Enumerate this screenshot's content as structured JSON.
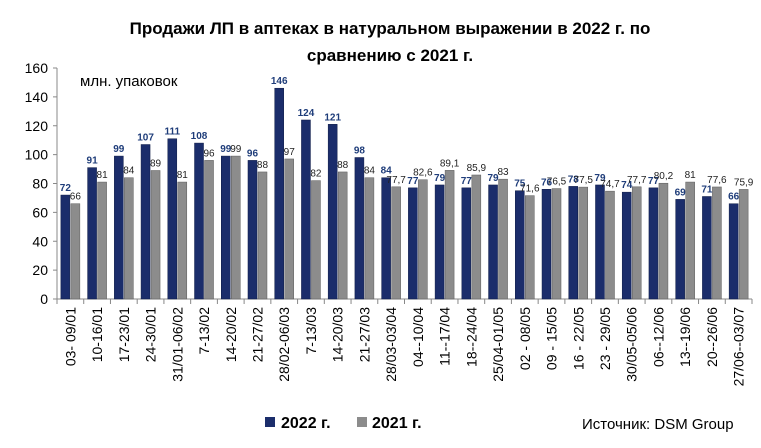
{
  "chart_data": {
    "type": "bar",
    "title_line1": "Продажи ЛП в аптеках в натуральном выражении в 2022 г. по",
    "title_line2": "сравнению с 2021 г.",
    "ylabel": "млн.  упаковок",
    "ylim": [
      0,
      160
    ],
    "yticks": [
      0,
      20,
      40,
      60,
      80,
      100,
      120,
      140,
      160
    ],
    "categories": [
      "03- 09/01",
      "10-16/01",
      "17-23/01",
      "24-30/01",
      "31/01-06/02",
      "7-13/02",
      "14-20/02",
      "21-27/02",
      "28/02-06/03",
      "7-13/03",
      "14-20/03",
      "21-27/03",
      "28/03-03/04",
      "04--10/04",
      "11--17/04",
      "18--24/04",
      "25/04-01/05",
      "02 - 08/05",
      "09 - 15/05",
      "16 - 22/05",
      "23 - 29/05",
      "30/05-05/06",
      "06--12/06",
      "13--19/06",
      "20--26/06",
      "27/06--03/07"
    ],
    "series": [
      {
        "name": "2022 г.",
        "color": "#1b2d6b",
        "values": [
          72,
          91,
          99,
          107,
          111,
          108,
          99,
          96,
          146,
          124,
          121,
          98,
          84,
          77,
          79,
          77,
          79,
          75,
          76,
          78,
          79,
          74,
          77,
          69,
          71,
          66
        ],
        "labels": [
          "72",
          "91",
          "99",
          "107",
          "111",
          "108",
          "99",
          "96",
          "146",
          "124",
          "121",
          "98",
          "84",
          "77",
          "79",
          "77",
          "79",
          "75",
          "76",
          "78",
          "79",
          "74",
          "77",
          "69",
          "71",
          "66"
        ]
      },
      {
        "name": "2021 г.",
        "color": "#8c8c8c",
        "values": [
          66,
          81,
          84,
          89,
          81,
          96,
          99,
          88,
          97,
          82,
          88,
          84,
          77.7,
          82.6,
          89.1,
          85.9,
          83,
          71.6,
          76.5,
          77.5,
          74.7,
          77.7,
          80.2,
          81,
          77.6,
          75.9
        ],
        "labels": [
          "66",
          "81",
          "84",
          "89",
          "81",
          "96",
          "99",
          "88",
          "97",
          "82",
          "88",
          "84",
          "77,7",
          "82,6",
          "89,1",
          "85,9",
          "83",
          "71,6",
          "76,5",
          "77,5",
          "74,7",
          "77,7",
          "80,2",
          "81",
          "77,6",
          "75,9"
        ]
      }
    ],
    "legend_position": "bottom",
    "grid": false,
    "source": "Источник: DSM Group"
  }
}
